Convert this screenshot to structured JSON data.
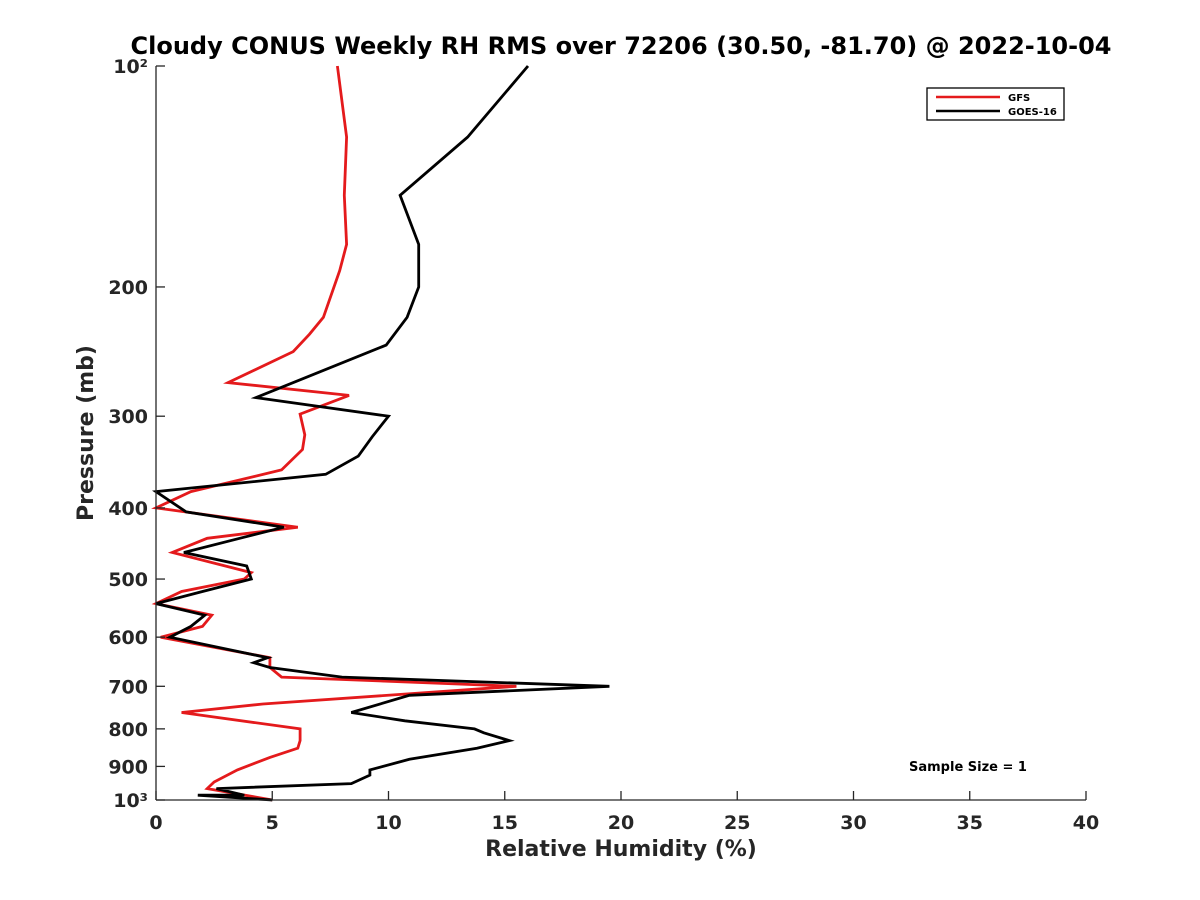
{
  "chart_data": {
    "type": "line",
    "title": "Cloudy CONUS Weekly RH RMS over 72206 (30.50, -81.70) @ 2022-10-04",
    "xlabel": "Relative Humidity (%)",
    "ylabel": "Pressure (mb)",
    "xlim": [
      0,
      40
    ],
    "ylim": [
      100,
      1000
    ],
    "y_scale": "log",
    "y_reversed": true,
    "x_ticks": [
      0,
      5,
      10,
      15,
      20,
      25,
      30,
      35,
      40
    ],
    "x_tick_labels": [
      "0",
      "5",
      "10",
      "15",
      "20",
      "25",
      "30",
      "35",
      "40"
    ],
    "y_ticks": [
      100,
      200,
      300,
      400,
      500,
      600,
      700,
      800,
      900,
      1000
    ],
    "y_tick_labels": [
      "10²",
      "200",
      "300",
      "400",
      "500",
      "600",
      "700",
      "800",
      "900",
      "10³"
    ],
    "legend_placement": "top-right",
    "annotation": "Sample Size = 1",
    "series": [
      {
        "name": "GFS",
        "color": "#e41a1c",
        "x": [
          7.8,
          8.2,
          8.1,
          8.2,
          7.9,
          7.2,
          6.6,
          5.9,
          3.1,
          8.3,
          6.2,
          6.4,
          6.3,
          5.4,
          1.5,
          0.0,
          6.1,
          2.2,
          0.7,
          4.1,
          3.8,
          1.1,
          0.0,
          2.4,
          2.0,
          0.2,
          4.9,
          4.9,
          5.4,
          15.5,
          4.6,
          1.1,
          6.2,
          6.2,
          6.1,
          4.9,
          3.5,
          2.5,
          2.2,
          5.0
        ],
        "y": [
          100,
          125,
          150,
          175,
          190,
          220,
          232,
          245,
          270,
          281,
          298,
          318,
          333,
          355,
          380,
          400,
          425,
          440,
          460,
          490,
          500,
          520,
          540,
          560,
          580,
          600,
          640,
          660,
          680,
          700,
          740,
          760,
          800,
          830,
          850,
          875,
          910,
          945,
          965,
          1000
        ]
      },
      {
        "name": "GOES-16",
        "color": "#000000",
        "x": [
          16.0,
          13.4,
          10.5,
          11.3,
          11.3,
          10.8,
          9.9,
          4.3,
          10.0,
          9.3,
          8.7,
          7.3,
          0.0,
          1.3,
          5.5,
          3.6,
          1.2,
          3.9,
          4.1,
          2.0,
          0.0,
          2.1,
          1.5,
          0.6,
          4.8,
          4.2,
          4.9,
          8.0,
          19.5,
          10.9,
          8.4,
          10.7,
          13.7,
          14.1,
          15.2,
          13.8,
          10.9,
          9.2,
          9.2,
          8.4,
          2.6,
          3.8,
          1.8,
          5.0
        ],
        "y": [
          100,
          125,
          150,
          175,
          200,
          220,
          240,
          283,
          300,
          320,
          340,
          360,
          380,
          405,
          425,
          440,
          460,
          480,
          500,
          520,
          540,
          560,
          580,
          600,
          640,
          650,
          660,
          680,
          700,
          720,
          760,
          780,
          800,
          810,
          830,
          850,
          880,
          910,
          925,
          950,
          965,
          985,
          985,
          1000
        ]
      }
    ]
  }
}
